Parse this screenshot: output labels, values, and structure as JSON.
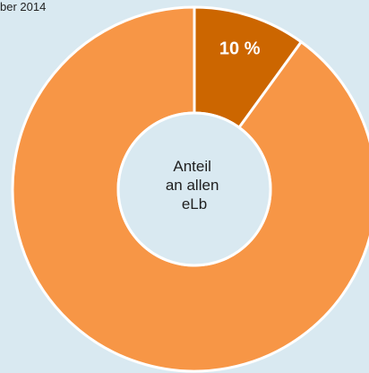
{
  "header": {
    "partial_text": "ber 2014"
  },
  "chart_data": {
    "type": "pie",
    "donut": true,
    "start_angle_deg": 0,
    "direction": "clockwise",
    "slices": [
      {
        "value": 10,
        "label": "10 %",
        "color": "#cc6600"
      },
      {
        "value": 90,
        "label": "",
        "color": "#f79646"
      }
    ],
    "center_text": [
      "Anteil",
      "an allen",
      "eLb"
    ],
    "separator_color": "#ffffff",
    "center_color": "#d9e9f1"
  }
}
